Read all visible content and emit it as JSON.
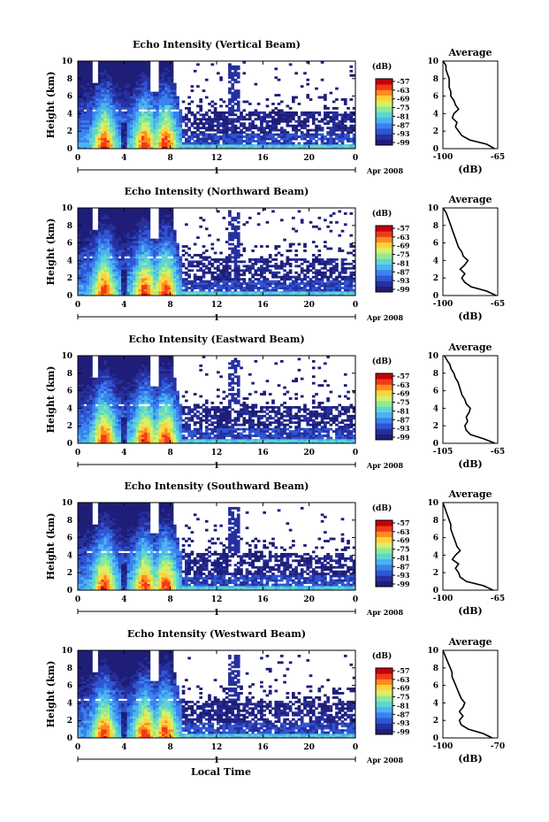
{
  "figure": {
    "xlabel_bottom": "Local Time"
  },
  "colors": {
    "scale": [
      "#1e1e78",
      "#26309e",
      "#2f56d2",
      "#3a82ee",
      "#4cb3f0",
      "#5fd6d0",
      "#8fe99a",
      "#d6f06a",
      "#ffd23a",
      "#ff8c1e",
      "#f23a18",
      "#c4000a"
    ]
  },
  "chart_data": [
    {
      "type": "heatmap",
      "title": "Echo Intensity (Vertical Beam)",
      "ylabel": "Height (km)",
      "x_ticks": [
        "0",
        "4",
        "8",
        "12",
        "16",
        "20",
        "0"
      ],
      "y_ticks": [
        "0",
        "2",
        "4",
        "6",
        "8",
        "10"
      ],
      "xlim": [
        0,
        24
      ],
      "ylim": [
        0,
        10
      ],
      "date_labels": [
        "1",
        "Apr 2008"
      ],
      "colorbar": {
        "unit": "(dB)",
        "ticks": [
          "-57",
          "-63",
          "-69",
          "-75",
          "-81",
          "-87",
          "-93",
          "-99"
        ]
      },
      "profile": {
        "title": "Average",
        "xlabel": "(dB)",
        "x_ticks": [
          "-100",
          "-65"
        ],
        "xlim": [
          -100,
          -65
        ],
        "y_ticks": [
          "0",
          "2",
          "4",
          "6",
          "8",
          "10"
        ],
        "height": [
          0,
          0.5,
          1,
          1.5,
          2,
          2.5,
          3,
          3.5,
          4,
          4.5,
          5,
          5.5,
          6,
          6.5,
          7,
          7.5,
          8,
          8.5,
          9,
          9.5,
          10
        ],
        "db": [
          -67,
          -72,
          -83,
          -88,
          -90,
          -92,
          -91,
          -94,
          -93,
          -90,
          -92,
          -93,
          -95,
          -95,
          -96,
          -96,
          -96,
          -97,
          -98,
          -98,
          -100
        ]
      }
    },
    {
      "type": "heatmap",
      "title": "Echo Intensity (Northward Beam)",
      "ylabel": "Height (km)",
      "x_ticks": [
        "0",
        "4",
        "8",
        "12",
        "16",
        "20",
        "0"
      ],
      "y_ticks": [
        "0",
        "2",
        "4",
        "6",
        "8",
        "10"
      ],
      "xlim": [
        0,
        24
      ],
      "ylim": [
        0,
        10
      ],
      "date_labels": [
        "1",
        "Apr 2008"
      ],
      "colorbar": {
        "unit": "(dB)",
        "ticks": [
          "-57",
          "-63",
          "-69",
          "-75",
          "-81",
          "-87",
          "-93",
          "-99"
        ]
      },
      "profile": {
        "title": "Average",
        "xlabel": "(dB)",
        "x_ticks": [
          "-100",
          "-65"
        ],
        "xlim": [
          -100,
          -65
        ],
        "y_ticks": [
          "0",
          "2",
          "4",
          "6",
          "8",
          "10"
        ],
        "height": [
          0,
          0.5,
          1,
          1.5,
          2,
          2.5,
          3,
          3.5,
          4,
          4.5,
          5,
          5.5,
          6,
          6.5,
          7,
          7.5,
          8,
          8.5,
          9,
          9.5,
          10
        ],
        "db": [
          -66,
          -72,
          -82,
          -86,
          -88,
          -86,
          -89,
          -86,
          -84,
          -87,
          -88,
          -90,
          -91,
          -92,
          -93,
          -94,
          -95,
          -96,
          -97,
          -98,
          -100
        ]
      }
    },
    {
      "type": "heatmap",
      "title": "Echo Intensity (Eastward Beam)",
      "ylabel": "Height (km)",
      "x_ticks": [
        "0",
        "4",
        "8",
        "12",
        "16",
        "20",
        "0"
      ],
      "y_ticks": [
        "0",
        "2",
        "4",
        "6",
        "8",
        "10"
      ],
      "xlim": [
        0,
        24
      ],
      "ylim": [
        0,
        10
      ],
      "date_labels": [
        "1",
        "Apr 2008"
      ],
      "colorbar": {
        "unit": "(dB)",
        "ticks": [
          "-57",
          "-63",
          "-69",
          "-75",
          "-81",
          "-87",
          "-93",
          "-99"
        ]
      },
      "profile": {
        "title": "Average",
        "xlabel": "(dB)",
        "x_ticks": [
          "-105",
          "-65"
        ],
        "xlim": [
          -105,
          -65
        ],
        "y_ticks": [
          "0",
          "2",
          "4",
          "6",
          "8",
          "10"
        ],
        "height": [
          0,
          0.5,
          1,
          1.5,
          2,
          2.5,
          3,
          3.5,
          4,
          4.5,
          5,
          5.5,
          6,
          6.5,
          7,
          7.5,
          8,
          8.5,
          9,
          9.5,
          10
        ],
        "db": [
          -67,
          -75,
          -85,
          -88,
          -89,
          -87,
          -88,
          -86,
          -85,
          -88,
          -89,
          -91,
          -92,
          -93,
          -94,
          -96,
          -97,
          -99,
          -100,
          -102,
          -104
        ]
      }
    },
    {
      "type": "heatmap",
      "title": "Echo Intensity (Southward Beam)",
      "ylabel": "Height (km)",
      "x_ticks": [
        "0",
        "4",
        "8",
        "12",
        "16",
        "20",
        "0"
      ],
      "y_ticks": [
        "0",
        "2",
        "4",
        "6",
        "8",
        "10"
      ],
      "xlim": [
        0,
        24
      ],
      "ylim": [
        0,
        10
      ],
      "date_labels": [
        "1",
        "Apr 2008"
      ],
      "colorbar": {
        "unit": "(dB)",
        "ticks": [
          "-57",
          "-63",
          "-69",
          "-75",
          "-81",
          "-87",
          "-93",
          "-99"
        ]
      },
      "profile": {
        "title": "Average",
        "xlabel": "(dB)",
        "x_ticks": [
          "-100",
          "-65"
        ],
        "xlim": [
          -100,
          -65
        ],
        "y_ticks": [
          "0",
          "2",
          "4",
          "6",
          "8",
          "10"
        ],
        "height": [
          0,
          0.5,
          1,
          1.5,
          2,
          2.5,
          3,
          3.5,
          4,
          4.5,
          5,
          5.5,
          6,
          6.5,
          7,
          7.5,
          8,
          8.5,
          9,
          9.5,
          10
        ],
        "db": [
          -68,
          -74,
          -85,
          -89,
          -90,
          -92,
          -90,
          -94,
          -92,
          -89,
          -91,
          -92,
          -93,
          -94,
          -95,
          -95,
          -96,
          -97,
          -98,
          -99,
          -100
        ]
      }
    },
    {
      "type": "heatmap",
      "title": "Echo Intensity (Westward Beam)",
      "ylabel": "Height (km)",
      "x_ticks": [
        "0",
        "4",
        "8",
        "12",
        "16",
        "20",
        "0"
      ],
      "y_ticks": [
        "0",
        "2",
        "4",
        "6",
        "8",
        "10"
      ],
      "xlim": [
        0,
        24
      ],
      "ylim": [
        0,
        10
      ],
      "date_labels": [
        "1",
        "Apr 2008"
      ],
      "colorbar": {
        "unit": "(dB)",
        "ticks": [
          "-57",
          "-63",
          "-69",
          "-75",
          "-81",
          "-87",
          "-93",
          "-99"
        ]
      },
      "profile": {
        "title": "Average",
        "xlabel": "(dB)",
        "x_ticks": [
          "-100",
          "-70"
        ],
        "xlim": [
          -100,
          -70
        ],
        "y_ticks": [
          "0",
          "2",
          "4",
          "6",
          "8",
          "10"
        ],
        "height": [
          0,
          0.5,
          1,
          1.5,
          2,
          2.5,
          3,
          3.5,
          4,
          4.5,
          5,
          5.5,
          6,
          6.5,
          7,
          7.5,
          8,
          8.5,
          9,
          9.5,
          10
        ],
        "db": [
          -73,
          -78,
          -86,
          -90,
          -91,
          -89,
          -91,
          -89,
          -88,
          -90,
          -91,
          -92,
          -93,
          -94,
          -95,
          -95,
          -96,
          -97,
          -98,
          -99,
          -100
        ]
      }
    }
  ]
}
